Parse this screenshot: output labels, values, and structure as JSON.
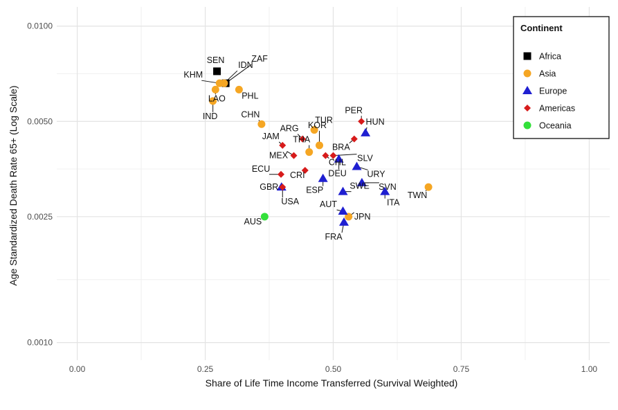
{
  "chart_data": {
    "type": "scatter",
    "title": "",
    "xlabel": "Share of Life Time Income Transferred (Survival Weighted)",
    "ylabel": "Age Standardized Death Rate 65+ (Log Scale)",
    "x_ticks": [
      "0.00",
      "0.25",
      "0.50",
      "0.75",
      "1.00"
    ],
    "y_ticks": [
      "0.0010",
      "0.0025",
      "0.0050",
      "0.0100"
    ],
    "xlim": [
      -0.04,
      1.04
    ],
    "ylim": [
      0.00088,
      0.0115
    ],
    "y_scale": "log",
    "grid": true,
    "legend": {
      "title": "Continent",
      "position": "top-right",
      "entries": [
        "Africa",
        "Asia",
        "Europe",
        "Americas",
        "Oceania"
      ]
    },
    "series": [
      {
        "name": "Africa",
        "marker": "square",
        "color": "#000000",
        "points": [
          {
            "label": "SEN",
            "x": 0.273,
            "y": 0.0072
          },
          {
            "label": "ZAF",
            "x": 0.29,
            "y": 0.0066
          }
        ]
      },
      {
        "name": "Asia",
        "marker": "circle",
        "color": "#F5A623",
        "points": [
          {
            "label": "KHM",
            "x": 0.278,
            "y": 0.0066
          },
          {
            "label": "IDN",
            "x": 0.287,
            "y": 0.0066
          },
          {
            "label": "LAO",
            "x": 0.27,
            "y": 0.0063
          },
          {
            "label": "IND",
            "x": 0.265,
            "y": 0.0058
          },
          {
            "label": "PHL",
            "x": 0.316,
            "y": 0.0063
          },
          {
            "label": "CHN",
            "x": 0.36,
            "y": 0.0049
          },
          {
            "label": "TUR",
            "x": 0.463,
            "y": 0.0047
          },
          {
            "label": "KOR",
            "x": 0.473,
            "y": 0.0042
          },
          {
            "label": "THA",
            "x": 0.453,
            "y": 0.004
          },
          {
            "label": "JPN",
            "x": 0.53,
            "y": 0.0025
          },
          {
            "label": "TWN",
            "x": 0.686,
            "y": 0.0031
          }
        ]
      },
      {
        "name": "Europe",
        "marker": "triangle",
        "color": "#1F1FD1",
        "points": [
          {
            "label": "HUN",
            "x": 0.563,
            "y": 0.0046
          },
          {
            "label": "DEU",
            "x": 0.511,
            "y": 0.0038
          },
          {
            "label": "URY",
            "x": 0.546,
            "y": 0.0036
          },
          {
            "label": "SVN",
            "x": 0.556,
            "y": 0.0032
          },
          {
            "label": "ESP",
            "x": 0.48,
            "y": 0.0033
          },
          {
            "label": "SWE",
            "x": 0.519,
            "y": 0.003
          },
          {
            "label": "ITA",
            "x": 0.601,
            "y": 0.003
          },
          {
            "label": "AUT",
            "x": 0.519,
            "y": 0.0026
          },
          {
            "label": "FRA",
            "x": 0.521,
            "y": 0.0024
          },
          {
            "label": "GBR",
            "x": 0.399,
            "y": 0.0031
          }
        ]
      },
      {
        "name": "Americas",
        "marker": "diamond",
        "color": "#D71B1B",
        "points": [
          {
            "label": "PER",
            "x": 0.555,
            "y": 0.005
          },
          {
            "label": "ARG",
            "x": 0.44,
            "y": 0.0044
          },
          {
            "label": "BRA",
            "x": 0.541,
            "y": 0.0044
          },
          {
            "label": "JAM",
            "x": 0.401,
            "y": 0.0042
          },
          {
            "label": "MEX",
            "x": 0.423,
            "y": 0.0039
          },
          {
            "label": "CHL",
            "x": 0.485,
            "y": 0.0039
          },
          {
            "label": "SLV",
            "x": 0.5,
            "y": 0.0039
          },
          {
            "label": "ECU",
            "x": 0.398,
            "y": 0.0034
          },
          {
            "label": "CRI",
            "x": 0.445,
            "y": 0.0035
          },
          {
            "label": "USA",
            "x": 0.401,
            "y": 0.0031
          }
        ]
      },
      {
        "name": "Oceania",
        "marker": "circle",
        "color": "#33E03A",
        "points": [
          {
            "label": "AUS",
            "x": 0.366,
            "y": 0.0025
          }
        ]
      }
    ]
  }
}
